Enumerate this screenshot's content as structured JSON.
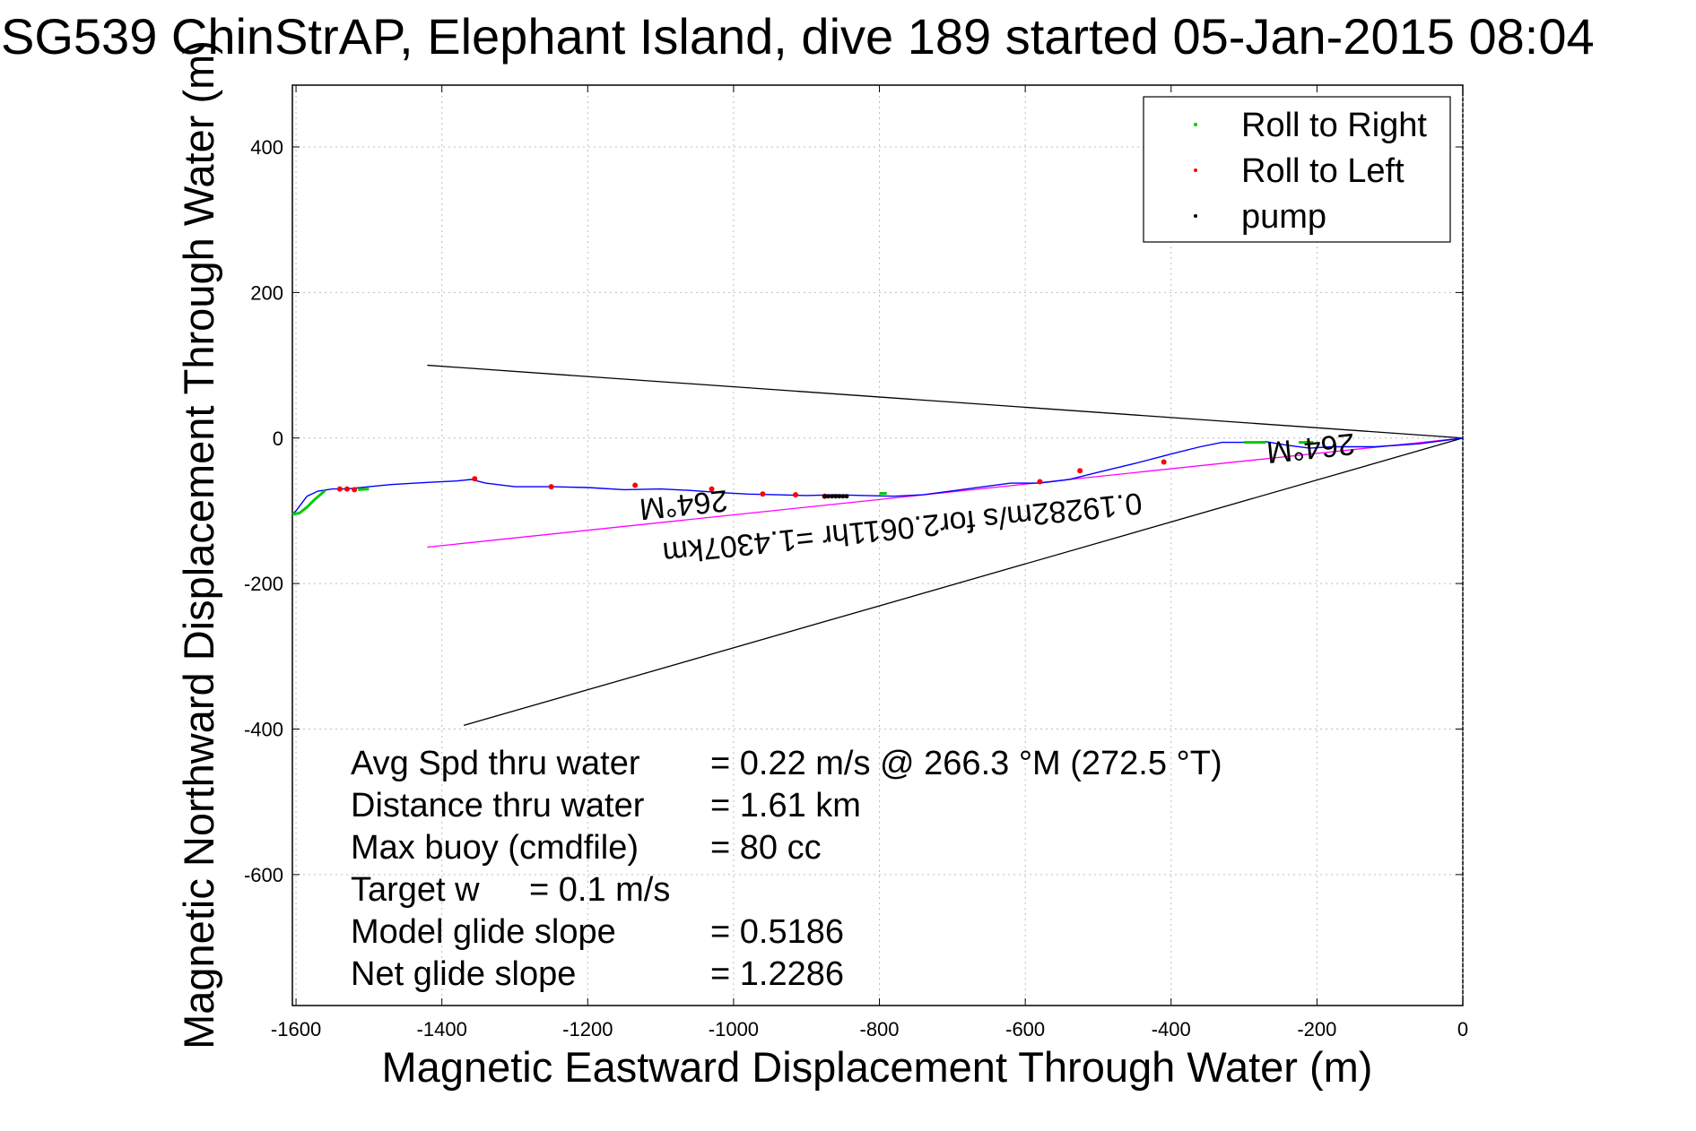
{
  "chart_data": {
    "type": "line",
    "title": "SG539 ChinStrAP, Elephant Island, dive 189 started 05-Jan-2015 08:04",
    "xlabel": "Magnetic Eastward Displacement Through Water (m)",
    "ylabel": "Magnetic Northward Displacement Through Water (m)",
    "xlim": [
      -1605,
      0
    ],
    "ylim": [
      -780,
      485
    ],
    "xticks": [
      -1600,
      -1400,
      -1200,
      -1000,
      -800,
      -600,
      -400,
      -200,
      0
    ],
    "yticks": [
      -600,
      -400,
      -200,
      0,
      200,
      400
    ],
    "grid": true,
    "legend": {
      "position": "top-right",
      "entries": [
        {
          "label": "Roll to Right",
          "color": "#00cc00"
        },
        {
          "label": "Roll to Left",
          "color": "#ff0000"
        },
        {
          "label": "pump",
          "color": "#000000"
        }
      ]
    },
    "track": {
      "color": "#0000ff",
      "x": [
        0,
        -60,
        -120,
        -180,
        -210,
        -240,
        -270,
        -300,
        -330,
        -360,
        -400,
        -450,
        -500,
        -540,
        -580,
        -620,
        -680,
        -740,
        -780,
        -820,
        -860,
        -900,
        -940,
        -980,
        -1020,
        -1060,
        -1100,
        -1150,
        -1200,
        -1250,
        -1300,
        -1340,
        -1360,
        -1380,
        -1420,
        -1470,
        -1500,
        -1530,
        -1550,
        -1570,
        -1585,
        -1600,
        -1605
      ],
      "y": [
        0,
        -8,
        -12,
        -12,
        -14,
        -10,
        -5,
        -6,
        -6,
        -12,
        -22,
        -35,
        -47,
        -57,
        -62,
        -62,
        -70,
        -78,
        -80,
        -79,
        -78,
        -79,
        -78,
        -77,
        -75,
        -72,
        -70,
        -71,
        -68,
        -67,
        -67,
        -62,
        -57,
        -59,
        -61,
        -64,
        -67,
        -70,
        -70,
        -73,
        -80,
        -100,
        -105
      ]
    },
    "roll_right_segments": [
      {
        "x": [
          -1605,
          -1595,
          -1585,
          -1575,
          -1560
        ],
        "y": [
          -105,
          -103,
          -95,
          -85,
          -72
        ]
      },
      {
        "x": [
          -1515,
          -1500
        ],
        "y": [
          -71,
          -70
        ]
      },
      {
        "x": [
          -800,
          -790
        ],
        "y": [
          -76,
          -76
        ]
      },
      {
        "x": [
          -300,
          -270
        ],
        "y": [
          -6,
          -6
        ]
      },
      {
        "x": [
          -225,
          -205
        ],
        "y": [
          -6,
          -6
        ]
      }
    ],
    "roll_left_points": {
      "x": [
        -1540,
        -1530,
        -1520,
        -1355,
        -1250,
        -1135,
        -1030,
        -960,
        -915,
        -875,
        -580,
        -525,
        -410
      ],
      "y": [
        -70,
        -70,
        -71,
        -56,
        -67,
        -65,
        -70,
        -77,
        -78,
        -80,
        -60,
        -45,
        -33
      ]
    },
    "pump_points": {
      "x": [
        -875,
        -870,
        -865,
        -860,
        -855,
        -850,
        -845
      ],
      "y": [
        -80,
        -80,
        -80,
        -80,
        -80,
        -80,
        -80
      ]
    },
    "reference_lines": [
      {
        "name": "upper",
        "color": "#000000",
        "x": [
          0,
          -1420
        ],
        "y": [
          0,
          100
        ]
      },
      {
        "name": "lower",
        "color": "#000000",
        "x": [
          0,
          -1370
        ],
        "y": [
          0,
          -395
        ]
      },
      {
        "name": "heading",
        "color": "#ff00ff",
        "x": [
          0,
          -1420
        ],
        "y": [
          0,
          -150
        ]
      }
    ],
    "annotations": [
      {
        "text": "264°M",
        "x": -1070,
        "y": -78,
        "color": "#000000"
      },
      {
        "text": "264°M",
        "x": -210,
        "y": 0,
        "color": "#000000"
      },
      {
        "text": "0.19282m/s for2.0611hr =1.4307km",
        "x": -770,
        "y": -110,
        "color": "#000000"
      }
    ],
    "stats": [
      {
        "label": "Avg Spd thru water",
        "value": "=  0.22 m/s @ 266.3 °M (272.5 °T)"
      },
      {
        "label": "Distance thru water",
        "value": "=  1.61 km"
      },
      {
        "label": "Max buoy (cmdfile)",
        "value": "= 80 cc"
      },
      {
        "label": "Target w",
        "value": "= 0.1 m/s"
      },
      {
        "label": "Model glide slope",
        "value": "= 0.5186"
      },
      {
        "label": "Net glide slope",
        "value": "= 1.2286"
      }
    ]
  }
}
